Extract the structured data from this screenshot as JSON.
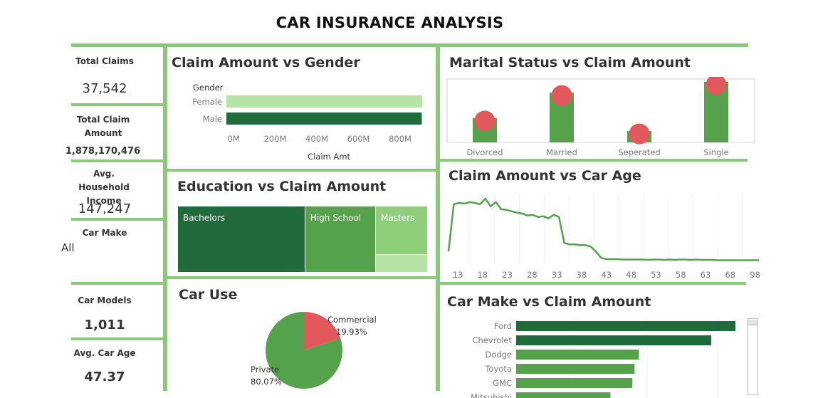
{
  "title": "CAR INSURANCE ANALYSIS",
  "colors": {
    "dark": "#216a3c",
    "mid": "#56a24c",
    "light": "#8fcf7b",
    "lighter": "#b6e3a5",
    "red": "#e1585d",
    "divider": "#8bc97a"
  },
  "kpis": {
    "total_claims": {
      "label": "Total Claims",
      "value": "37,542"
    },
    "total_claim_amount": {
      "label": "Total Claim Amount",
      "value": "1,878,170,476"
    },
    "avg_household_income": {
      "label": "Avg. Household Income",
      "value": "147,247"
    },
    "car_make": {
      "label": "Car Make",
      "value": "All"
    },
    "car_models": {
      "label": "Car Models",
      "value": "1,011"
    },
    "avg_car_age": {
      "label": "Avg. Car Age",
      "value": "47.37"
    }
  },
  "chart_data": [
    {
      "id": "gender",
      "type": "bar",
      "orientation": "horizontal",
      "title": "Claim Amount vs Gender",
      "legend_title": "Gender",
      "categories": [
        "Female",
        "Male"
      ],
      "values": [
        940,
        938
      ],
      "unit": "M",
      "xlabel": "Claim Amt",
      "xlim": [
        0,
        940
      ],
      "xticks": [
        "0M",
        "200M",
        "400M",
        "600M",
        "800M"
      ]
    },
    {
      "id": "marital",
      "type": "bar",
      "title": "Marital Status vs Claim Amount",
      "categories": [
        "Divorced",
        "Married",
        "Seperated",
        "Single"
      ],
      "values": [
        45,
        92,
        21,
        112
      ],
      "ylim": [
        0,
        112
      ]
    },
    {
      "id": "education",
      "type": "heatmap",
      "subtype": "treemap",
      "title": "Education vs Claim Amount",
      "categories": [
        "Bachelors",
        "High School",
        "Masters",
        ""
      ],
      "values": [
        54,
        30,
        16,
        6
      ]
    },
    {
      "id": "carage",
      "type": "line",
      "title": "Claim Amount vs Car Age",
      "x": [
        13,
        14,
        15,
        16,
        17,
        18,
        19,
        20,
        21,
        22,
        23,
        24,
        25,
        26,
        27,
        28,
        29,
        30,
        31,
        32,
        33,
        34,
        35,
        36,
        37,
        38,
        39,
        40,
        41,
        42,
        43,
        44,
        45,
        46,
        47,
        48,
        49,
        50,
        51,
        52,
        53,
        54,
        55,
        56,
        57,
        58,
        59,
        60,
        61,
        62,
        63,
        64,
        65,
        66,
        67,
        68,
        69,
        70,
        71,
        72
      ],
      "y": [
        15,
        82,
        84,
        83,
        85,
        84,
        82,
        90,
        79,
        85,
        75,
        74,
        72,
        70,
        69,
        66,
        67,
        64,
        65,
        62,
        67,
        64,
        27,
        25,
        25,
        24,
        24,
        22,
        15,
        6,
        4,
        4,
        4,
        3.5,
        3.5,
        3.5,
        3.5,
        3.5,
        3,
        3.5,
        3.5,
        3,
        3.5,
        3,
        3.5,
        3.5,
        3,
        3.5,
        3,
        3,
        3,
        2.5,
        2.5,
        2.5,
        2.5,
        2.5,
        2.5,
        2.5,
        2.5,
        2.5
      ],
      "ylim": [
        0,
        95
      ],
      "xticks": [
        "13",
        "18",
        "23",
        "28",
        "33",
        "38",
        "43",
        "48",
        "53",
        "58",
        "63",
        "68",
        "98"
      ]
    },
    {
      "id": "caruse",
      "type": "pie",
      "title": "Car Use",
      "categories": [
        "Commercial",
        "Private"
      ],
      "values": [
        19.93,
        80.07
      ],
      "labels": [
        "19.93%",
        "80.07%"
      ]
    },
    {
      "id": "carmake",
      "type": "bar",
      "orientation": "horizontal",
      "title": "Car Make vs Claim Amount",
      "categories": [
        "Ford",
        "Chevrolet",
        "Dodge",
        "Toyota",
        "GMC",
        "Mitsubishi"
      ],
      "values": [
        100,
        89,
        56,
        54,
        53,
        43
      ],
      "xlim": [
        0,
        100
      ]
    }
  ]
}
